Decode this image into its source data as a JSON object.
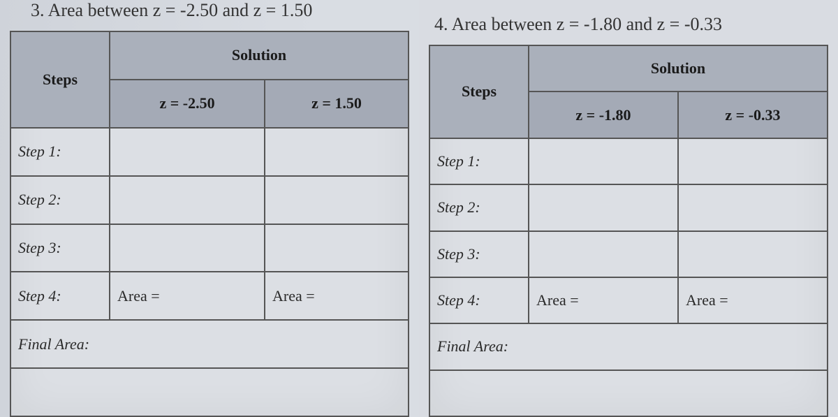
{
  "problems": [
    {
      "number": "3.",
      "prompt": "Area between z = -2.50 and z = 1.50",
      "headers": {
        "steps": "Steps",
        "solution": "Solution"
      },
      "z_cols": [
        "z = -2.50",
        "z = 1.50"
      ],
      "rows": [
        {
          "label": "Step 1:",
          "c1": "",
          "c2": ""
        },
        {
          "label": "Step 2:",
          "c1": "",
          "c2": ""
        },
        {
          "label": "Step 3:",
          "c1": "",
          "c2": ""
        },
        {
          "label": "Step 4:",
          "c1": "Area =",
          "c2": "Area ="
        }
      ],
      "final_label": "Final Area:",
      "colors": {
        "header_bg": "#aab0bb",
        "subheader_bg": "#a4aab6",
        "border": "#555555",
        "panel_bg": "#dcdfe4"
      },
      "font": {
        "family": "Georgia, serif",
        "label_fontsize": 22,
        "prompt_fontsize": 26
      }
    },
    {
      "number": "4.",
      "prompt": "Area between z = -1.80 and z = -0.33",
      "headers": {
        "steps": "Steps",
        "solution": "Solution"
      },
      "z_cols": [
        "z = -1.80",
        "z = -0.33"
      ],
      "rows": [
        {
          "label": "Step 1:",
          "c1": "",
          "c2": ""
        },
        {
          "label": "Step 2:",
          "c1": "",
          "c2": ""
        },
        {
          "label": "Step 3:",
          "c1": "",
          "c2": ""
        },
        {
          "label": "Step 4:",
          "c1": "Area =",
          "c2": "Area ="
        }
      ],
      "final_label": "Final Area:",
      "colors": {
        "header_bg": "#aab0bb",
        "subheader_bg": "#a4aab6",
        "border": "#555555",
        "panel_bg": "#dcdfe4"
      },
      "font": {
        "family": "Georgia, serif",
        "label_fontsize": 22,
        "prompt_fontsize": 26
      }
    }
  ]
}
